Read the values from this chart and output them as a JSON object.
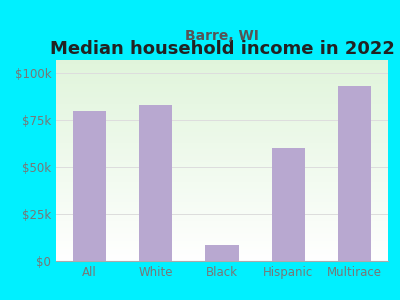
{
  "title": "Median household income in 2022",
  "subtitle": "Barre, WI",
  "categories": [
    "All",
    "White",
    "Black",
    "Hispanic",
    "Multirace"
  ],
  "values": [
    80000,
    83000,
    8500,
    60000,
    93000
  ],
  "bar_color": "#b8a8d0",
  "title_fontsize": 13,
  "subtitle_fontsize": 10,
  "title_color": "#222222",
  "subtitle_color": "#555555",
  "tick_color": "#777777",
  "background_outer": "#00f0ff",
  "ylim": [
    0,
    107000
  ],
  "yticks": [
    0,
    25000,
    50000,
    75000,
    100000
  ],
  "ytick_labels": [
    "$0",
    "$25k",
    "$50k",
    "$75k",
    "$100k"
  ],
  "grid_color": "#dddddd",
  "figsize": [
    4.0,
    3.0
  ],
  "dpi": 100
}
